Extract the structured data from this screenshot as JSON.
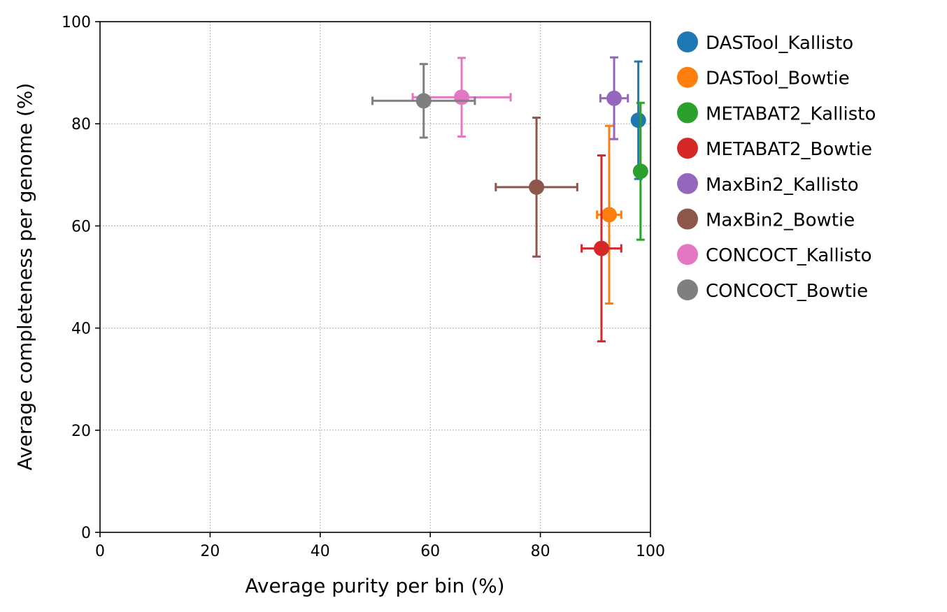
{
  "chart_data": {
    "type": "scatter",
    "title": "",
    "xlabel": "Average purity per bin (%)",
    "ylabel": "Average completeness per genome (%)",
    "xlim": [
      0,
      100
    ],
    "ylim": [
      0,
      100
    ],
    "xticks": [
      "0",
      "20",
      "40",
      "60",
      "80",
      "100"
    ],
    "yticks": [
      "0",
      "20",
      "40",
      "60",
      "80",
      "100"
    ],
    "grid": true,
    "legend_placement": "outside-right",
    "series": [
      {
        "name": "DASTool_Kallisto",
        "color": "#1f77b4",
        "x": 97.8,
        "y": 80.7,
        "x_err": 0.3,
        "y_err": 11.5
      },
      {
        "name": "DASTool_Bowtie",
        "color": "#ff7f0e",
        "x": 92.5,
        "y": 62.2,
        "x_err": 2.2,
        "y_err": 17.4
      },
      {
        "name": "METABAT2_Kallisto",
        "color": "#2ca02c",
        "x": 98.2,
        "y": 70.7,
        "x_err": 0.3,
        "y_err": 13.4
      },
      {
        "name": "METABAT2_Bowtie",
        "color": "#d62728",
        "x": 91.1,
        "y": 55.6,
        "x_err": 3.6,
        "y_err": 18.2
      },
      {
        "name": "MaxBin2_Kallisto",
        "color": "#9467bd",
        "x": 93.4,
        "y": 85.0,
        "x_err": 2.5,
        "y_err": 8.0
      },
      {
        "name": "MaxBin2_Bowtie",
        "color": "#8c564b",
        "x": 79.3,
        "y": 67.6,
        "x_err": 7.4,
        "y_err": 13.6
      },
      {
        "name": "CONCOCT_Kallisto",
        "color": "#e377c2",
        "x": 65.7,
        "y": 85.2,
        "x_err": 8.9,
        "y_err": 7.7
      },
      {
        "name": "CONCOCT_Bowtie",
        "color": "#7f7f7f",
        "x": 58.8,
        "y": 84.5,
        "x_err": 9.3,
        "y_err": 7.2
      }
    ]
  }
}
